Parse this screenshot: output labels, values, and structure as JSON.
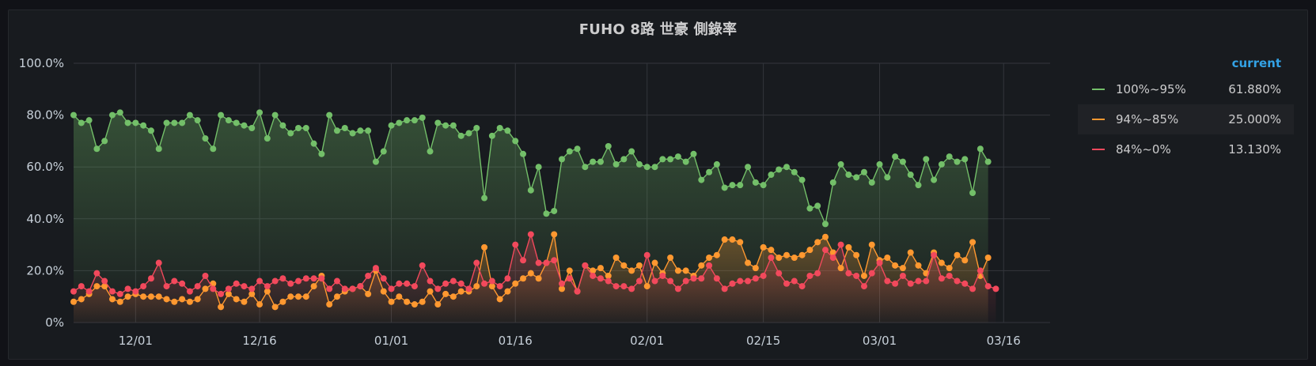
{
  "panel": {
    "title": "FUHO 8路 世豪 側錄率"
  },
  "legend": {
    "column_header": "current",
    "items": [
      {
        "name": "100%~95%",
        "value": "61.880%",
        "color": "#73bf69"
      },
      {
        "name": "94%~85%",
        "value": "25.000%",
        "color": "#ff9830"
      },
      {
        "name": "84%~0%",
        "value": "13.130%",
        "color": "#f2495c"
      }
    ]
  },
  "chart_data": {
    "type": "line",
    "title": "FUHO 8路 世豪 側錄率",
    "xlabel": "",
    "ylabel": "",
    "ylim": [
      0,
      100
    ],
    "y_tick_values": [
      0,
      20,
      40,
      60,
      80,
      100
    ],
    "y_tick_labels": [
      "0%",
      "20.0%",
      "40.0%",
      "60.0%",
      "80.0%",
      "100.0%"
    ],
    "x_tick_positions": [
      8,
      24,
      41,
      57,
      74,
      89,
      104,
      120
    ],
    "x_tick_labels": [
      "12/01",
      "12/16",
      "01/01",
      "01/16",
      "02/01",
      "02/15",
      "03/01",
      "03/16"
    ],
    "x_count": 127,
    "grid": true,
    "legend_position": "right",
    "series": [
      {
        "name": "100%~95%",
        "color": "#73bf69",
        "values": [
          80,
          77,
          78,
          67,
          70,
          80,
          81,
          77,
          77,
          76,
          74,
          67,
          77,
          77,
          77,
          80,
          78,
          71,
          67,
          80,
          78,
          77,
          76,
          75,
          81,
          71,
          80,
          76,
          73,
          75,
          75,
          69,
          65,
          80,
          74,
          75,
          73,
          74,
          74,
          62,
          66,
          76,
          77,
          78,
          78,
          79,
          66,
          77,
          76,
          76,
          72,
          73,
          75,
          48,
          72,
          75,
          74,
          70,
          65,
          51,
          60,
          42,
          43,
          63,
          66,
          67,
          60,
          62,
          62,
          68,
          61,
          63,
          66,
          61,
          60,
          60,
          63,
          63,
          64,
          62,
          65,
          55,
          58,
          61,
          52,
          53,
          53,
          60,
          54,
          53,
          57,
          59,
          60,
          58,
          55,
          44,
          45,
          38,
          54,
          61,
          57,
          56,
          58,
          54,
          61,
          56,
          64,
          62,
          57,
          53,
          63,
          55,
          61,
          64,
          62,
          63,
          50,
          67,
          62
        ],
        "current": "61.880%"
      },
      {
        "name": "94%~85%",
        "color": "#ff9830",
        "values": [
          8,
          9,
          11,
          14,
          14,
          9,
          8,
          10,
          11,
          10,
          10,
          10,
          9,
          8,
          9,
          8,
          9,
          13,
          15,
          6,
          11,
          9,
          8,
          11,
          7,
          12,
          6,
          8,
          10,
          10,
          10,
          14,
          18,
          7,
          10,
          12,
          13,
          14,
          11,
          20,
          12,
          8,
          10,
          8,
          7,
          8,
          12,
          7,
          11,
          10,
          12,
          12,
          14,
          29,
          14,
          9,
          12,
          15,
          17,
          19,
          17,
          23,
          34,
          13,
          20,
          12,
          22,
          20,
          21,
          18,
          25,
          22,
          20,
          22,
          14,
          23,
          19,
          25,
          20,
          20,
          18,
          22,
          25,
          26,
          32,
          32,
          31,
          23,
          21,
          29,
          28,
          25,
          26,
          25,
          26,
          28,
          31,
          33,
          27,
          21,
          29,
          26,
          18,
          30,
          24,
          25,
          22,
          21,
          27,
          22,
          19,
          27,
          23,
          21,
          26,
          24,
          31,
          18,
          25
        ],
        "current": "25.000%"
      },
      {
        "name": "84%~0%",
        "color": "#f2495c",
        "values": [
          12,
          14,
          12,
          19,
          16,
          12,
          11,
          13,
          12,
          14,
          17,
          23,
          14,
          16,
          15,
          12,
          14,
          18,
          13,
          11,
          13,
          15,
          14,
          13,
          16,
          14,
          16,
          17,
          15,
          16,
          17,
          17,
          17,
          13,
          16,
          13,
          13,
          14,
          18,
          21,
          17,
          13,
          15,
          15,
          14,
          22,
          16,
          13,
          15,
          16,
          15,
          13,
          23,
          15,
          16,
          14,
          17,
          30,
          24,
          34,
          23,
          23,
          24,
          15,
          17,
          12,
          22,
          18,
          17,
          16,
          14,
          14,
          13,
          16,
          26,
          16,
          18,
          16,
          13,
          16,
          17,
          17,
          22,
          17,
          13,
          15,
          16,
          16,
          17,
          18,
          25,
          19,
          15,
          16,
          14,
          18,
          19,
          28,
          25,
          30,
          19,
          18,
          14,
          19,
          23,
          16,
          15,
          18,
          15,
          16,
          16,
          26,
          17,
          18,
          16,
          15,
          13,
          20,
          14,
          13
        ]
      }
    ]
  }
}
